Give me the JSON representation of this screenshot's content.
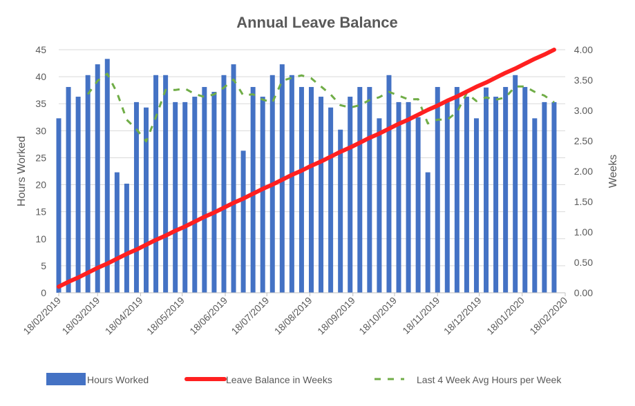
{
  "chart_data": {
    "type": "bar+line",
    "title": "Annual Leave Balance",
    "ylabel": "Hours Worked",
    "y2label": "Weeks",
    "ylim": [
      0,
      45
    ],
    "y2lim": [
      0,
      4
    ],
    "yticks": [
      "0",
      "5",
      "10",
      "15",
      "20",
      "25",
      "30",
      "35",
      "40",
      "45"
    ],
    "y2ticks": [
      "0.00",
      "0.50",
      "1.00",
      "1.50",
      "2.00",
      "2.50",
      "3.00",
      "3.50",
      "4.00"
    ],
    "xlim": [
      "18/02/2019",
      "18/02/2020"
    ],
    "xticks": [
      "18/02/2019",
      "18/03/2019",
      "18/04/2019",
      "18/05/2019",
      "18/06/2019",
      "18/07/2019",
      "18/08/2019",
      "18/09/2019",
      "18/10/2019",
      "18/11/2019",
      "18/12/2019",
      "18/01/2020",
      "18/02/2020"
    ],
    "grid": true,
    "legend_position": "bottom",
    "x": [
      "18/02/2019",
      "25/02/2019",
      "04/03/2019",
      "11/03/2019",
      "18/03/2019",
      "25/03/2019",
      "01/04/2019",
      "08/04/2019",
      "15/04/2019",
      "22/04/2019",
      "29/04/2019",
      "06/05/2019",
      "13/05/2019",
      "20/05/2019",
      "27/05/2019",
      "03/06/2019",
      "10/06/2019",
      "17/06/2019",
      "24/06/2019",
      "01/07/2019",
      "08/07/2019",
      "15/07/2019",
      "22/07/2019",
      "29/07/2019",
      "05/08/2019",
      "12/08/2019",
      "19/08/2019",
      "26/08/2019",
      "02/09/2019",
      "09/09/2019",
      "16/09/2019",
      "23/09/2019",
      "30/09/2019",
      "07/10/2019",
      "14/10/2019",
      "21/10/2019",
      "28/10/2019",
      "04/11/2019",
      "11/11/2019",
      "18/11/2019",
      "25/11/2019",
      "02/12/2019",
      "09/12/2019",
      "16/12/2019",
      "23/12/2019",
      "30/12/2019",
      "06/01/2020",
      "13/01/2020",
      "20/01/2020",
      "27/01/2020",
      "03/02/2020",
      "10/02/2020"
    ],
    "series": [
      {
        "name": "Hours Worked",
        "type": "bar",
        "axis": "left",
        "color": "#4472C4",
        "values": [
          32.3,
          38.1,
          36.3,
          40.3,
          42.3,
          43.3,
          22.3,
          20.2,
          35.3,
          34.3,
          40.3,
          40.3,
          35.3,
          35.3,
          36.3,
          38.1,
          37.2,
          40.3,
          42.3,
          26.3,
          38.1,
          36.3,
          40.3,
          42.3,
          40.3,
          38.1,
          38.1,
          36.3,
          34.3,
          30.2,
          36.3,
          38.1,
          38.1,
          32.3,
          40.3,
          35.3,
          35.3,
          32.5,
          22.3,
          38.1,
          35.3,
          38.1,
          36.3,
          32.3,
          38.0,
          36.3,
          38.1,
          40.3,
          38.1,
          32.3,
          35.3,
          35.3
        ]
      },
      {
        "name": "Leave Balance in Weeks",
        "type": "line",
        "axis": "right",
        "color": "#FF2020",
        "values": [
          0.1,
          0.18,
          0.25,
          0.33,
          0.41,
          0.48,
          0.56,
          0.64,
          0.71,
          0.79,
          0.87,
          0.94,
          1.02,
          1.09,
          1.17,
          1.25,
          1.32,
          1.4,
          1.48,
          1.55,
          1.63,
          1.71,
          1.78,
          1.86,
          1.94,
          2.01,
          2.09,
          2.16,
          2.24,
          2.32,
          2.39,
          2.47,
          2.55,
          2.62,
          2.7,
          2.78,
          2.85,
          2.93,
          3.01,
          3.08,
          3.16,
          3.23,
          3.31,
          3.39,
          3.46,
          3.54,
          3.62,
          3.69,
          3.77,
          3.85,
          3.92,
          4.0
        ]
      },
      {
        "name": "Last 4 Week Avg Hours per Week",
        "type": "line",
        "style": "dashed",
        "axis": "left",
        "color": "#70AD47",
        "values": [
          null,
          null,
          null,
          36.75,
          39.25,
          40.55,
          37.05,
          32.03,
          30.28,
          28.03,
          32.53,
          37.55,
          37.55,
          37.8,
          36.8,
          36.25,
          36.73,
          37.98,
          39.48,
          36.53,
          36.75,
          35.75,
          35.25,
          39.25,
          39.8,
          40.25,
          39.7,
          38.2,
          36.7,
          34.73,
          34.28,
          34.73,
          35.68,
          36.2,
          37.2,
          36.5,
          35.8,
          35.85,
          31.35,
          32.05,
          32.05,
          33.45,
          36.95,
          35.5,
          36.18,
          35.73,
          36.18,
          38.18,
          38.2,
          37.2,
          36.5,
          35.25
        ]
      }
    ]
  }
}
